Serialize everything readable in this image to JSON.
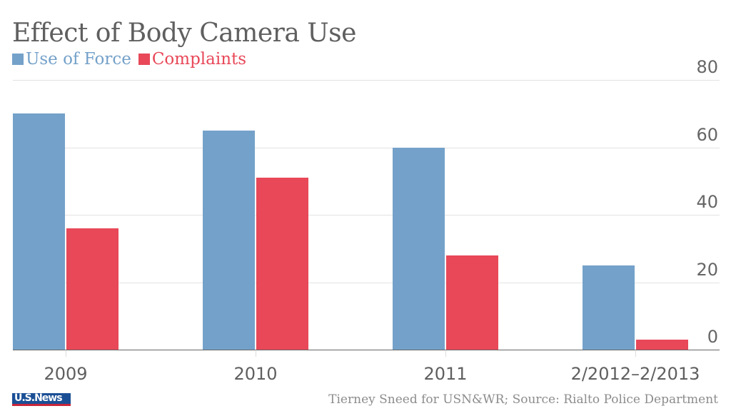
{
  "chart_data": {
    "type": "bar",
    "title": "Effect of Body Camera Use",
    "categories": [
      "2009",
      "2010",
      "2011",
      "2/2012–2/2013"
    ],
    "series": [
      {
        "name": "Use of Force",
        "color": "#74a1c9",
        "values": [
          70,
          65,
          60,
          25
        ]
      },
      {
        "name": "Complaints",
        "color": "#e84858",
        "values": [
          36,
          51,
          28,
          3
        ]
      }
    ],
    "xlabel": "",
    "ylabel": "",
    "ylim": [
      0,
      80
    ],
    "yticks": [
      "80",
      "60",
      "40",
      "20",
      "0"
    ],
    "grid": true,
    "legend_position": "top-left",
    "y_axis_side": "right"
  },
  "header": {
    "title": "Effect of Body Camera Use",
    "legend": [
      {
        "label": "Use of Force",
        "color": "#74a1c9"
      },
      {
        "label": "Complaints",
        "color": "#e84858"
      }
    ]
  },
  "footer": {
    "logo_text": "U.S.News",
    "source": "Tierney Sneed for USN&WR; Source: Rialto Police Department"
  }
}
